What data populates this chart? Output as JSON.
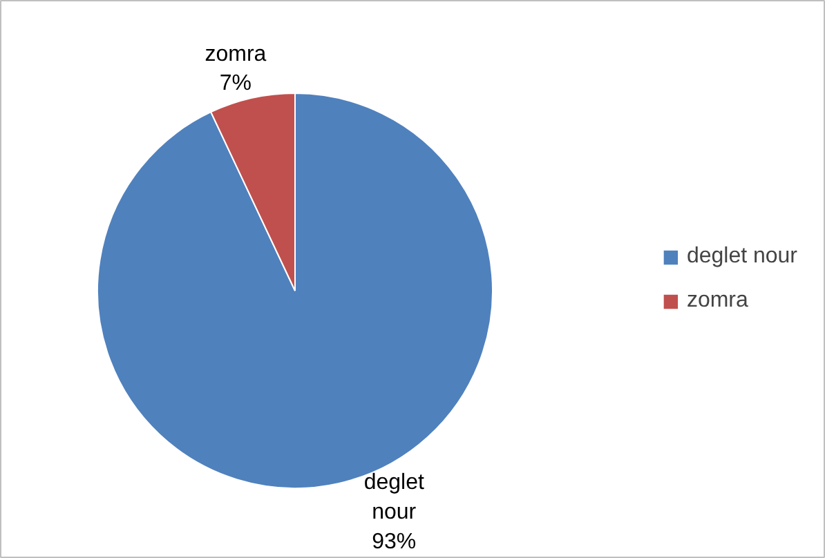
{
  "chart_data": {
    "type": "pie",
    "categories": [
      "deglet nour",
      "zomra"
    ],
    "values": [
      93,
      7
    ],
    "colors": [
      "#4f81bd",
      "#c0504d"
    ],
    "value_labels": [
      "93%",
      "7%"
    ],
    "legend": "right"
  }
}
